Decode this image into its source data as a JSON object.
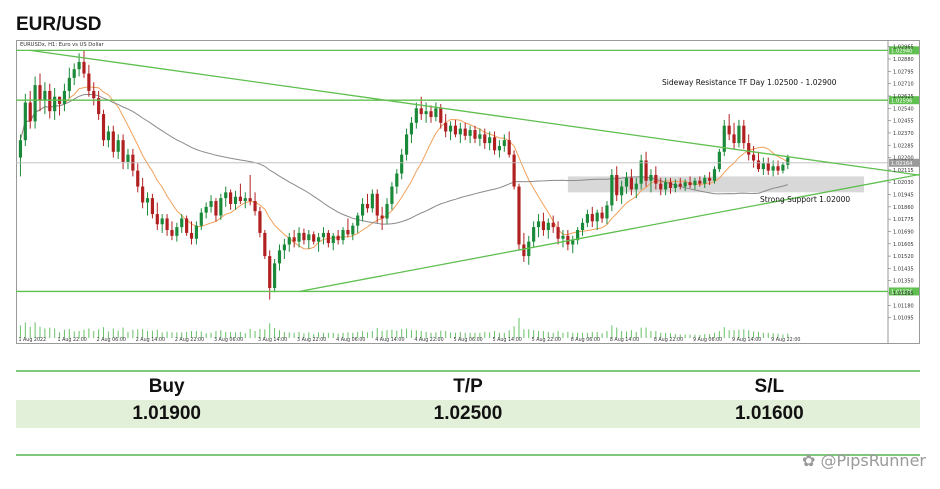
{
  "page": {
    "title": "EUR/USD",
    "watermark": "@PipsRunner",
    "watermark_icon": "logo-icon"
  },
  "trade": {
    "headers": [
      "Buy",
      "T/P",
      "S/L"
    ],
    "values": [
      "1.01900",
      "1.02500",
      "1.01600"
    ]
  },
  "colors": {
    "bull": "#1a8a3a",
    "bear": "#b02020",
    "level_line": "#5fbf4f",
    "ma_fast": "#f2a15a",
    "ma_slow": "#8a8a8a",
    "support_zone": "#d8d8d8",
    "volume": "#66c266"
  },
  "chart_data": {
    "type": "candlestick",
    "header": "EURUSDx, H1: Euro vs US Dollar",
    "ylim": [
      1.0101,
      1.0297
    ],
    "y_ticks": [
      "1.02965",
      "1.02880",
      "1.02795",
      "1.02710",
      "1.02625",
      "1.02540",
      "1.02455",
      "1.02370",
      "1.02285",
      "1.02200",
      "1.02115",
      "1.02030",
      "1.01945",
      "1.01860",
      "1.01775",
      "1.01690",
      "1.01605",
      "1.01520",
      "1.01435",
      "1.01350",
      "1.01265",
      "1.01180",
      "1.01095"
    ],
    "x_ticks": [
      "1 Aug 2022",
      "1 Aug 22:00",
      "2 Aug 06:00",
      "2 Aug 14:00",
      "2 Aug 22:00",
      "3 Aug 06:00",
      "3 Aug 14:00",
      "3 Aug 22:00",
      "4 Aug 06:00",
      "4 Aug 14:00",
      "4 Aug 22:00",
      "5 Aug 06:00",
      "5 Aug 14:00",
      "5 Aug 22:00",
      "8 Aug 06:00",
      "8 Aug 14:00",
      "8 Aug 22:00",
      "9 Aug 06:00",
      "9 Aug 14:00",
      "9 Aug 22:00"
    ],
    "level_labels": [
      "1.02940",
      "1.02596",
      "1.01276"
    ],
    "current_price": "1.02164",
    "resistance_lines": [
      1.0294,
      1.02596
    ],
    "support_line": 1.01276,
    "support_zone": [
      1.0196,
      1.0207
    ],
    "annotations": {
      "resistance": "Sideway Resistance TF Day 1.02500 - 1.02900",
      "support": "Strong Support 1.02000"
    },
    "trendlines": [
      {
        "name": "upper",
        "points": [
          [
            2,
            1.0294
          ],
          [
            190,
            1.0205
          ]
        ]
      },
      {
        "name": "lower",
        "points": [
          [
            57,
            1.01276
          ],
          [
            185,
            1.0209
          ]
        ]
      }
    ],
    "ohlc": [
      [
        1.022,
        1.0236,
        1.0207,
        1.0232
      ],
      [
        1.0232,
        1.0264,
        1.0228,
        1.0258
      ],
      [
        1.0258,
        1.0266,
        1.024,
        1.0245
      ],
      [
        1.0245,
        1.0276,
        1.024,
        1.027
      ],
      [
        1.027,
        1.0278,
        1.0252,
        1.026
      ],
      [
        1.026,
        1.0272,
        1.025,
        1.0266
      ],
      [
        1.0266,
        1.0271,
        1.0247,
        1.0252
      ],
      [
        1.0252,
        1.0268,
        1.0246,
        1.0262
      ],
      [
        1.0262,
        1.0262,
        1.0249,
        1.0257
      ],
      [
        1.0257,
        1.0271,
        1.0252,
        1.0266
      ],
      [
        1.0266,
        1.0282,
        1.0261,
        1.0275
      ],
      [
        1.0275,
        1.0285,
        1.027,
        1.0281
      ],
      [
        1.0281,
        1.0292,
        1.0276,
        1.0286
      ],
      [
        1.0286,
        1.0294,
        1.0275,
        1.0278
      ],
      [
        1.0278,
        1.0284,
        1.0262,
        1.0266
      ],
      [
        1.0266,
        1.0272,
        1.0256,
        1.0261
      ],
      [
        1.0261,
        1.0266,
        1.0246,
        1.025
      ],
      [
        1.025,
        1.0253,
        1.0228,
        1.0232
      ],
      [
        1.0232,
        1.0242,
        1.0227,
        1.0238
      ],
      [
        1.0238,
        1.0242,
        1.022,
        1.0224
      ],
      [
        1.0224,
        1.0236,
        1.0219,
        1.0232
      ],
      [
        1.0232,
        1.0236,
        1.0212,
        1.0217
      ],
      [
        1.0217,
        1.0226,
        1.0212,
        1.0222
      ],
      [
        1.0222,
        1.0226,
        1.0207,
        1.0211
      ],
      [
        1.0211,
        1.0216,
        1.0196,
        1.02
      ],
      [
        1.02,
        1.0206,
        1.0185,
        1.0189
      ],
      [
        1.0189,
        1.0196,
        1.018,
        1.0192
      ],
      [
        1.0192,
        1.0195,
        1.0178,
        1.0181
      ],
      [
        1.0181,
        1.0189,
        1.017,
        1.0174
      ],
      [
        1.0174,
        1.0181,
        1.0168,
        1.0178
      ],
      [
        1.0178,
        1.0181,
        1.0166,
        1.017
      ],
      [
        1.017,
        1.0176,
        1.0163,
        1.0166
      ],
      [
        1.0166,
        1.0175,
        1.0162,
        1.0172
      ],
      [
        1.0172,
        1.0181,
        1.0168,
        1.0178
      ],
      [
        1.0178,
        1.018,
        1.0166,
        1.0168
      ],
      [
        1.0168,
        1.0176,
        1.016,
        1.0164
      ],
      [
        1.0164,
        1.0176,
        1.016,
        1.0173
      ],
      [
        1.0173,
        1.0185,
        1.017,
        1.0182
      ],
      [
        1.0182,
        1.0189,
        1.0178,
        1.0186
      ],
      [
        1.0186,
        1.0194,
        1.0182,
        1.019
      ],
      [
        1.019,
        1.0192,
        1.0176,
        1.018
      ],
      [
        1.018,
        1.0195,
        1.0177,
        1.0192
      ],
      [
        1.0192,
        1.02,
        1.0186,
        1.0196
      ],
      [
        1.0196,
        1.0198,
        1.0184,
        1.0188
      ],
      [
        1.0188,
        1.0197,
        1.0184,
        1.0193
      ],
      [
        1.0193,
        1.0202,
        1.0188,
        1.019
      ],
      [
        1.019,
        1.0196,
        1.0185,
        1.0192
      ],
      [
        1.0192,
        1.0208,
        1.0187,
        1.019
      ],
      [
        1.019,
        1.0196,
        1.018,
        1.0183
      ],
      [
        1.0183,
        1.0186,
        1.0165,
        1.0168
      ],
      [
        1.0168,
        1.017,
        1.015,
        1.0152
      ],
      [
        1.0152,
        1.0156,
        1.0122,
        1.013
      ],
      [
        1.013,
        1.015,
        1.0127,
        1.0147
      ],
      [
        1.0147,
        1.016,
        1.0142,
        1.0156
      ],
      [
        1.0156,
        1.0164,
        1.015,
        1.016
      ],
      [
        1.016,
        1.0168,
        1.0155,
        1.0165
      ],
      [
        1.0165,
        1.017,
        1.0158,
        1.0162
      ],
      [
        1.0162,
        1.0172,
        1.0158,
        1.0168
      ],
      [
        1.0168,
        1.0171,
        1.016,
        1.0163
      ],
      [
        1.0163,
        1.017,
        1.0157,
        1.0167
      ],
      [
        1.0167,
        1.0169,
        1.016,
        1.0162
      ],
      [
        1.0162,
        1.0168,
        1.0155,
        1.0165
      ],
      [
        1.0165,
        1.0172,
        1.016,
        1.0168
      ],
      [
        1.0168,
        1.017,
        1.0158,
        1.0161
      ],
      [
        1.0161,
        1.0168,
        1.0156,
        1.0166
      ],
      [
        1.0166,
        1.017,
        1.016,
        1.0163
      ],
      [
        1.0163,
        1.0172,
        1.016,
        1.017
      ],
      [
        1.017,
        1.0178,
        1.0165,
        1.0167
      ],
      [
        1.0167,
        1.0175,
        1.0163,
        1.0173
      ],
      [
        1.0173,
        1.0182,
        1.0168,
        1.018
      ],
      [
        1.018,
        1.0192,
        1.0176,
        1.0188
      ],
      [
        1.0188,
        1.0195,
        1.0182,
        1.0185
      ],
      [
        1.0185,
        1.0198,
        1.0182,
        1.0195
      ],
      [
        1.0195,
        1.0198,
        1.0175,
        1.018
      ],
      [
        1.018,
        1.0186,
        1.017,
        1.0178
      ],
      [
        1.0178,
        1.0192,
        1.0174,
        1.0188
      ],
      [
        1.0188,
        1.0203,
        1.0184,
        1.02
      ],
      [
        1.02,
        1.0212,
        1.0195,
        1.0209
      ],
      [
        1.0209,
        1.0226,
        1.0205,
        1.0222
      ],
      [
        1.0222,
        1.024,
        1.0218,
        1.0236
      ],
      [
        1.0236,
        1.0248,
        1.023,
        1.0244
      ],
      [
        1.0244,
        1.0258,
        1.024,
        1.0254
      ],
      [
        1.0254,
        1.0262,
        1.0246,
        1.025
      ],
      [
        1.025,
        1.0258,
        1.0244,
        1.0252
      ],
      [
        1.0252,
        1.0256,
        1.0244,
        1.0248
      ],
      [
        1.0248,
        1.0258,
        1.0245,
        1.0254
      ],
      [
        1.0254,
        1.0257,
        1.024,
        1.0244
      ],
      [
        1.0244,
        1.025,
        1.0234,
        1.0238
      ],
      [
        1.0238,
        1.0245,
        1.0232,
        1.0242
      ],
      [
        1.0242,
        1.0246,
        1.0234,
        1.0236
      ],
      [
        1.0236,
        1.0244,
        1.023,
        1.024
      ],
      [
        1.024,
        1.0244,
        1.0232,
        1.0235
      ],
      [
        1.0235,
        1.0242,
        1.023,
        1.0239
      ],
      [
        1.0239,
        1.0242,
        1.023,
        1.0233
      ],
      [
        1.0233,
        1.024,
        1.0228,
        1.0236
      ],
      [
        1.0236,
        1.024,
        1.0226,
        1.023
      ],
      [
        1.023,
        1.0238,
        1.0225,
        1.0234
      ],
      [
        1.0234,
        1.0238,
        1.0222,
        1.0225
      ],
      [
        1.0225,
        1.0232,
        1.022,
        1.0228
      ],
      [
        1.0228,
        1.0236,
        1.0224,
        1.0232
      ],
      [
        1.0232,
        1.0238,
        1.022,
        1.0222
      ],
      [
        1.0222,
        1.0225,
        1.0198,
        1.02
      ],
      [
        1.02,
        1.0202,
        1.0156,
        1.016
      ],
      [
        1.016,
        1.0168,
        1.0148,
        1.0152
      ],
      [
        1.0152,
        1.0166,
        1.0146,
        1.0162
      ],
      [
        1.0162,
        1.0176,
        1.0158,
        1.0172
      ],
      [
        1.0172,
        1.0181,
        1.0165,
        1.0176
      ],
      [
        1.0176,
        1.0182,
        1.0166,
        1.017
      ],
      [
        1.017,
        1.0178,
        1.0164,
        1.0175
      ],
      [
        1.0175,
        1.018,
        1.0168,
        1.0172
      ],
      [
        1.0172,
        1.0176,
        1.016,
        1.0164
      ],
      [
        1.0164,
        1.017,
        1.0158,
        1.0166
      ],
      [
        1.0166,
        1.017,
        1.0156,
        1.016
      ],
      [
        1.016,
        1.0166,
        1.0154,
        1.0163
      ],
      [
        1.0163,
        1.0172,
        1.016,
        1.017
      ],
      [
        1.017,
        1.0178,
        1.0166,
        1.0175
      ],
      [
        1.0175,
        1.0184,
        1.0172,
        1.0181
      ],
      [
        1.0181,
        1.0186,
        1.0172,
        1.0176
      ],
      [
        1.0176,
        1.0184,
        1.017,
        1.0182
      ],
      [
        1.0182,
        1.0186,
        1.0175,
        1.0178
      ],
      [
        1.0178,
        1.019,
        1.0174,
        1.0187
      ],
      [
        1.0187,
        1.0212,
        1.0183,
        1.0208
      ],
      [
        1.0208,
        1.0214,
        1.019,
        1.0194
      ],
      [
        1.0194,
        1.0204,
        1.0188,
        1.02
      ],
      [
        1.02,
        1.021,
        1.0195,
        1.0206
      ],
      [
        1.0206,
        1.0212,
        1.0194,
        1.0198
      ],
      [
        1.0198,
        1.0206,
        1.0192,
        1.0202
      ],
      [
        1.0202,
        1.0222,
        1.0198,
        1.0218
      ],
      [
        1.0218,
        1.0224,
        1.02,
        1.0204
      ],
      [
        1.0204,
        1.0212,
        1.0196,
        1.0208
      ],
      [
        1.0208,
        1.0214,
        1.0198,
        1.0202
      ],
      [
        1.0202,
        1.0206,
        1.0194,
        1.0198
      ],
      [
        1.0198,
        1.0206,
        1.0194,
        1.0203
      ],
      [
        1.0203,
        1.0206,
        1.0195,
        1.0199
      ],
      [
        1.0199,
        1.0205,
        1.0196,
        1.0202
      ],
      [
        1.0202,
        1.0206,
        1.0198,
        1.02
      ],
      [
        1.02,
        1.0205,
        1.0197,
        1.0203
      ],
      [
        1.0203,
        1.0207,
        1.0199,
        1.0201
      ],
      [
        1.0201,
        1.0206,
        1.0198,
        1.0204
      ],
      [
        1.0204,
        1.0207,
        1.02,
        1.0202
      ],
      [
        1.0202,
        1.0208,
        1.0199,
        1.0206
      ],
      [
        1.0206,
        1.021,
        1.0201,
        1.0204
      ],
      [
        1.0204,
        1.0214,
        1.0202,
        1.0212
      ],
      [
        1.0212,
        1.0226,
        1.021,
        1.0224
      ],
      [
        1.0224,
        1.0246,
        1.0221,
        1.0242
      ],
      [
        1.0242,
        1.025,
        1.0232,
        1.0236
      ],
      [
        1.0236,
        1.0244,
        1.0226,
        1.023
      ],
      [
        1.023,
        1.0246,
        1.0227,
        1.0242
      ],
      [
        1.0242,
        1.0246,
        1.0226,
        1.023
      ],
      [
        1.023,
        1.0236,
        1.0218,
        1.0222
      ],
      [
        1.0222,
        1.0228,
        1.0213,
        1.0218
      ],
      [
        1.0218,
        1.0224,
        1.021,
        1.0212
      ],
      [
        1.0212,
        1.022,
        1.0208,
        1.0216
      ],
      [
        1.0216,
        1.022,
        1.0208,
        1.0211
      ],
      [
        1.0211,
        1.0218,
        1.0207,
        1.0214
      ],
      [
        1.0214,
        1.0218,
        1.0208,
        1.0211
      ],
      [
        1.0211,
        1.0217,
        1.0209,
        1.0215
      ],
      [
        1.0215,
        1.0222,
        1.0212,
        1.022
      ]
    ]
  }
}
